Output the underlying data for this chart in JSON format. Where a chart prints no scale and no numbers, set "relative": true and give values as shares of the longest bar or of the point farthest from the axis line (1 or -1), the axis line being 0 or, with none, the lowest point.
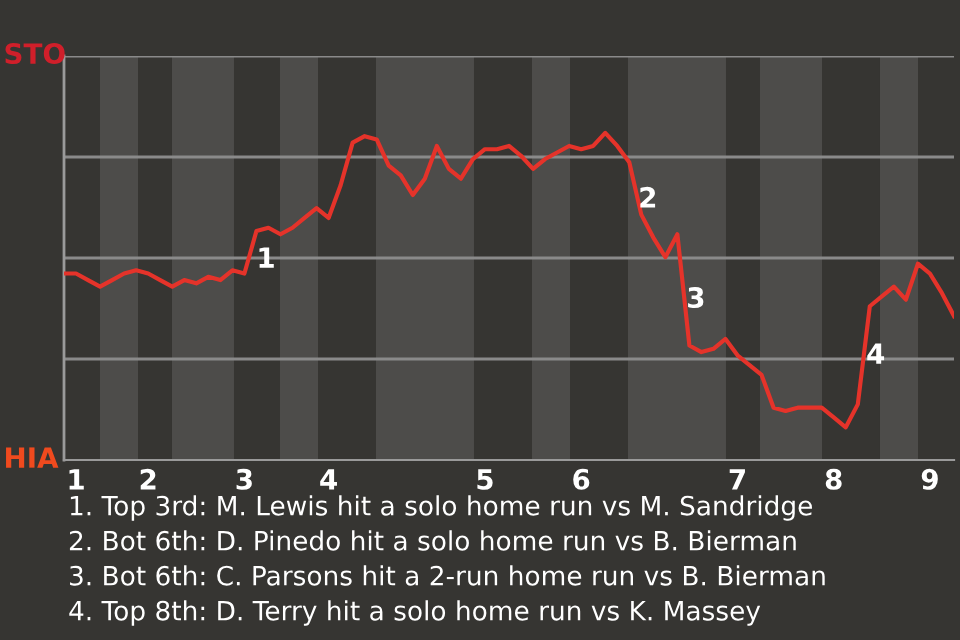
{
  "chart_data": {
    "type": "line",
    "relative": true,
    "marker": "none",
    "line_style": "solid",
    "categories": [
      null,
      "1",
      null,
      null,
      null,
      null,
      null,
      "2",
      null,
      null,
      null,
      null,
      null,
      null,
      null,
      "3",
      null,
      null,
      null,
      null,
      null,
      null,
      "4",
      null,
      null,
      null,
      null,
      null,
      null,
      null,
      null,
      null,
      null,
      null,
      null,
      "5",
      null,
      null,
      null,
      null,
      null,
      null,
      null,
      "6",
      null,
      null,
      null,
      null,
      null,
      null,
      null,
      null,
      null,
      null,
      null,
      null,
      "7",
      null,
      null,
      null,
      null,
      null,
      null,
      null,
      "8",
      null,
      null,
      null,
      null,
      null,
      null,
      null,
      "9",
      null,
      null
    ],
    "series": [
      {
        "color": "#e5332a",
        "values": [
          0.57,
          0.57,
          0.55,
          0.53,
          0.55,
          0.57,
          0.58,
          0.57,
          0.55,
          0.53,
          0.55,
          0.54,
          0.56,
          0.55,
          0.58,
          0.57,
          0.7,
          0.71,
          0.69,
          0.71,
          0.74,
          0.77,
          0.74,
          0.84,
          0.97,
          0.99,
          0.98,
          0.9,
          0.87,
          0.81,
          0.86,
          0.96,
          0.89,
          0.86,
          0.92,
          0.95,
          0.95,
          0.96,
          0.93,
          0.89,
          0.92,
          0.94,
          0.96,
          0.95,
          0.96,
          1,
          0.96,
          0.91,
          0.75,
          0.68,
          0.62,
          0.69,
          0.35,
          0.33,
          0.34,
          0.37,
          0.32,
          0.29,
          0.26,
          0.16,
          0.15,
          0.16,
          0.16,
          0.16,
          0.13,
          0.1,
          0.17,
          0.47,
          0.5,
          0.53,
          0.49,
          0.6,
          0.57,
          0.51,
          0.44
        ]
      }
    ],
    "annotations": [
      "STO",
      "HIA",
      "1",
      "2",
      "3",
      "4",
      "1. Top 3rd: M. Lewis hit a solo home run vs M. Sandridge",
      "2. Bot 6th: D. Pinedo hit a solo home run vs B. Bierman",
      "3. Bot 6th: C. Parsons hit a 2-run home run vs B. Bierman",
      "4. Top 8th: D. Terry hit a solo home run vs K. Massey"
    ]
  }
}
